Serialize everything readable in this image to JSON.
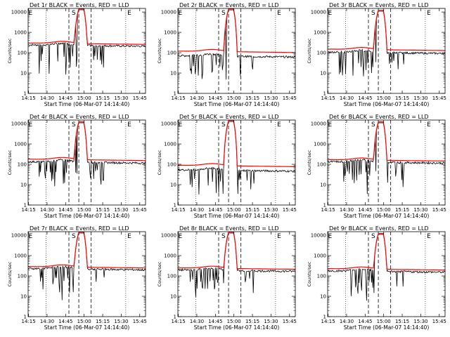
{
  "figure": {
    "title_pattern": "BLACK = Events, RED = LLD",
    "x_axis_title": "Start Time (06-Mar-07 14:14:40)",
    "y_axis_title": "Counts/sec",
    "x_tick_labels": [
      "14:15",
      "14:30",
      "14:45",
      "15:00",
      "15:15",
      "15:30",
      "15:45"
    ],
    "y_tick_labels": [
      "1",
      "10",
      "100",
      "1000",
      "10000"
    ],
    "top_markers": [
      "E",
      "S",
      "E"
    ]
  },
  "chart_data": [
    {
      "type": "line",
      "title": "Det 1r BLACK = Events, RED = LLD",
      "xlabel": "Start Time (06-Mar-07 14:14:40)",
      "ylabel": "Counts/sec",
      "yscale": "log",
      "ylim": [
        1,
        15000
      ],
      "xlim_minutes": [
        0,
        95
      ],
      "series": [
        {
          "name": "Events",
          "color": "#000000",
          "baseline": 270
        },
        {
          "name": "LLD",
          "color": "#ff0000",
          "baseline": 300,
          "peak": 14000
        }
      ]
    },
    {
      "type": "line",
      "title": "Det 2r BLACK = Events, RED = LLD",
      "xlabel": "Start Time (06-Mar-07 14:14:40)",
      "ylabel": "Counts/sec",
      "yscale": "log",
      "ylim": [
        1,
        15000
      ],
      "xlim_minutes": [
        0,
        95
      ],
      "series": [
        {
          "name": "Events",
          "color": "#000000",
          "baseline": 80
        },
        {
          "name": "LLD",
          "color": "#ff0000",
          "baseline": 120,
          "peak": 14000
        }
      ]
    },
    {
      "type": "line",
      "title": "Det 3r BLACK = Events, RED = LLD",
      "xlabel": "Start Time (06-Mar-07 14:14:40)",
      "ylabel": "Counts/sec",
      "yscale": "log",
      "ylim": [
        1,
        15000
      ],
      "xlim_minutes": [
        0,
        95
      ],
      "series": [
        {
          "name": "Events",
          "color": "#000000",
          "baseline": 120
        },
        {
          "name": "LLD",
          "color": "#ff0000",
          "baseline": 150,
          "peak": 12000
        }
      ]
    },
    {
      "type": "line",
      "title": "Det 4r BLACK = Events, RED = LLD",
      "xlabel": "Start Time (06-Mar-07 14:14:40)",
      "ylabel": "Counts/sec",
      "yscale": "log",
      "ylim": [
        1,
        15000
      ],
      "xlim_minutes": [
        0,
        95
      ],
      "series": [
        {
          "name": "Events",
          "color": "#000000",
          "baseline": 150
        },
        {
          "name": "LLD",
          "color": "#ff0000",
          "baseline": 180,
          "peak": 12000
        }
      ]
    },
    {
      "type": "line",
      "title": "Det 5r BLACK = Events, RED = LLD",
      "xlabel": "Start Time (06-Mar-07 14:14:40)",
      "ylabel": "Counts/sec",
      "yscale": "log",
      "ylim": [
        1,
        15000
      ],
      "xlim_minutes": [
        0,
        95
      ],
      "series": [
        {
          "name": "Events",
          "color": "#000000",
          "baseline": 60
        },
        {
          "name": "LLD",
          "color": "#ff0000",
          "baseline": 90,
          "peak": 14000
        }
      ]
    },
    {
      "type": "line",
      "title": "Det 6r BLACK = Events, RED = LLD",
      "xlabel": "Start Time (06-Mar-07 14:14:40)",
      "ylabel": "Counts/sec",
      "yscale": "log",
      "ylim": [
        1,
        15000
      ],
      "xlim_minutes": [
        0,
        95
      ],
      "series": [
        {
          "name": "Events",
          "color": "#000000",
          "baseline": 150
        },
        {
          "name": "LLD",
          "color": "#ff0000",
          "baseline": 170,
          "peak": 12000
        }
      ]
    },
    {
      "type": "line",
      "title": "Det 7r BLACK = Events, RED = LLD",
      "xlabel": "Start Time (06-Mar-07 14:14:40)",
      "ylabel": "Counts/sec",
      "yscale": "log",
      "ylim": [
        1,
        15000
      ],
      "xlim_minutes": [
        0,
        95
      ],
      "series": [
        {
          "name": "Events",
          "color": "#000000",
          "baseline": 260
        },
        {
          "name": "LLD",
          "color": "#ff0000",
          "baseline": 290,
          "peak": 14000
        }
      ]
    },
    {
      "type": "line",
      "title": "Det 8r BLACK = Events, RED = LLD",
      "xlabel": "Start Time (06-Mar-07 14:14:40)",
      "ylabel": "Counts/sec",
      "yscale": "log",
      "ylim": [
        1,
        15000
      ],
      "xlim_minutes": [
        0,
        95
      ],
      "series": [
        {
          "name": "Events",
          "color": "#000000",
          "baseline": 220
        },
        {
          "name": "LLD",
          "color": "#ff0000",
          "baseline": 250,
          "peak": 14000
        }
      ]
    },
    {
      "type": "line",
      "title": "Det 9r BLACK = Events, RED = LLD",
      "xlabel": "Start Time (06-Mar-07 14:14:40)",
      "ylabel": "Counts/sec",
      "yscale": "log",
      "ylim": [
        1,
        15000
      ],
      "xlim_minutes": [
        0,
        95
      ],
      "series": [
        {
          "name": "Events",
          "color": "#000000",
          "baseline": 200
        },
        {
          "name": "LLD",
          "color": "#ff0000",
          "baseline": 230,
          "peak": 12000
        }
      ]
    }
  ]
}
